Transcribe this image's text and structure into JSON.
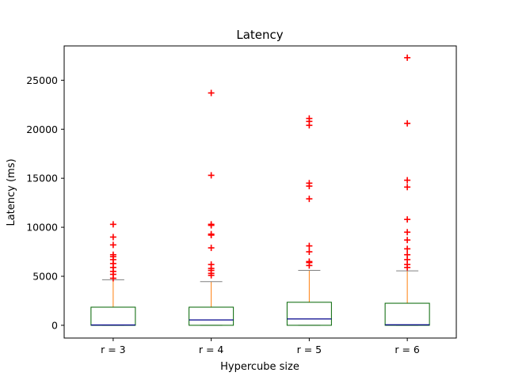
{
  "chart_data": {
    "type": "box",
    "title": "Latency",
    "xlabel": "Hypercube size",
    "ylabel": "Latency (ms)",
    "ylim": [
      -1300,
      28500
    ],
    "yticks": [
      0,
      5000,
      10000,
      15000,
      20000,
      25000
    ],
    "ytick_labels": [
      "0",
      "5000",
      "10000",
      "15000",
      "20000",
      "25000"
    ],
    "categories": [
      "r = 3",
      "r = 4",
      "r = 5",
      "r = 6"
    ],
    "colors": {
      "box": "#006400",
      "median": "#00008b",
      "whisker": "#ff7f0e",
      "cap": "#808080",
      "flier": "#ff0000"
    },
    "boxes": [
      {
        "label": "r = 3",
        "whislo": 0,
        "q1": 0,
        "med": 30,
        "q3": 1850,
        "whishi": 4650,
        "fliers": [
          4800,
          5200,
          5500,
          5900,
          6300,
          6700,
          7000,
          7200,
          8200,
          9000,
          10300
        ]
      },
      {
        "label": "r = 4",
        "whislo": 0,
        "q1": 0,
        "med": 550,
        "q3": 1850,
        "whishi": 4450,
        "fliers": [
          5100,
          5300,
          5600,
          5800,
          6200,
          7900,
          9200,
          9300,
          10200,
          10300,
          15300,
          23700
        ]
      },
      {
        "label": "r = 5",
        "whislo": 0,
        "q1": 0,
        "med": 650,
        "q3": 2350,
        "whishi": 5600,
        "fliers": [
          6100,
          6400,
          6500,
          7500,
          8100,
          12900,
          14200,
          14500,
          20400,
          20800,
          21100
        ]
      },
      {
        "label": "r = 6",
        "whislo": 0,
        "q1": 0,
        "med": 50,
        "q3": 2250,
        "whishi": 5550,
        "fliers": [
          5900,
          6200,
          6700,
          7200,
          7800,
          8700,
          9500,
          10800,
          14100,
          14800,
          20600,
          27300
        ]
      }
    ]
  }
}
